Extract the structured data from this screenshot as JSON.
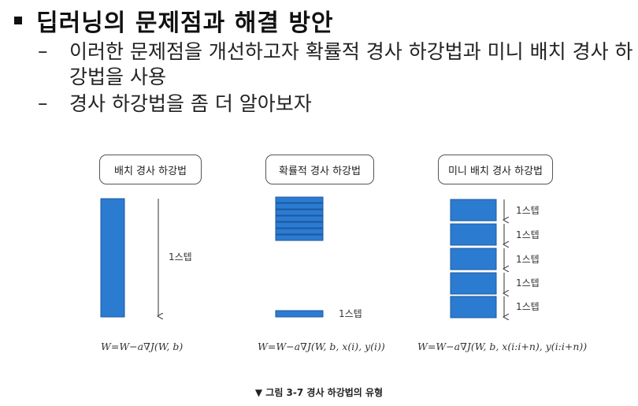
{
  "heading": {
    "title": "딥러닝의 문제점과 해결 방안"
  },
  "bullets": [
    {
      "dash": "–",
      "text": "이러한 문제점을 개선하고자 확률적 경사 하강법과 미니 배치 경사 하강법을 사용"
    },
    {
      "dash": "–",
      "text": "경사 하강법을 좀 더 알아보자"
    }
  ],
  "figure": {
    "panels": [
      {
        "label": "배치 경사 하강법",
        "step_label": "1스텝",
        "formula": "W=W−a∇J(W, b)"
      },
      {
        "label": "확률적 경사 하강법",
        "step_label": "1스텝",
        "formula": "W=W−a∇J(W, b, x(i), y(i))"
      },
      {
        "label": "미니 배치 경사 하강법",
        "step_labels": [
          "1스텝",
          "1스텝",
          "1스텝",
          "1스텝",
          "1스텝"
        ],
        "formula": "W=W−a∇J(W, b, x(i:i+n), y(i:i+n))"
      }
    ],
    "caption": "▼ 그림 3-7 경사 하강법의 유형",
    "colors": {
      "block": "#2b7bd1",
      "block_border": "#1b5aa0",
      "arrow": "#333333"
    }
  }
}
